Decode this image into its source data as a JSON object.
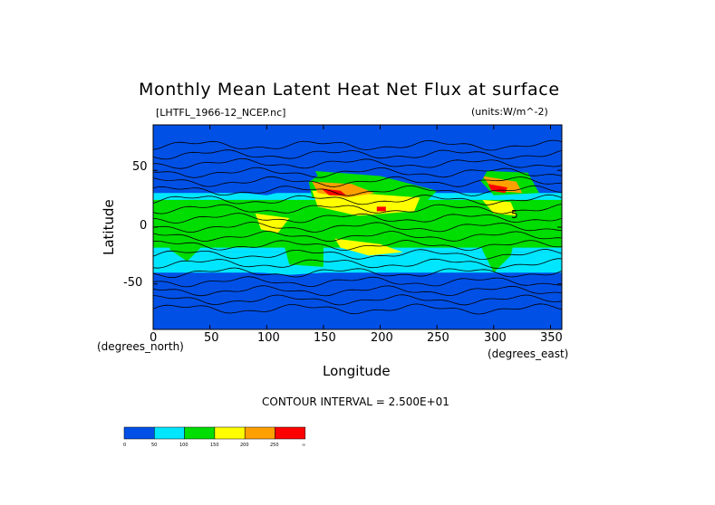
{
  "chart_data": {
    "type": "heatmap",
    "title": "Monthly Mean Latent Heat Net Flux at surface",
    "file_label": "[LHTFL_1966-12_NCEP.nc]",
    "units_label": "(units:W/m^-2)",
    "xlabel": "Longitude",
    "ylabel": "Latitude",
    "x_unit": "(degrees_east)",
    "y_unit": "(degrees_north)",
    "xlim": [
      0,
      360
    ],
    "ylim": [
      -90,
      90
    ],
    "x_ticks": [
      "0",
      "50",
      "100",
      "150",
      "200",
      "250",
      "300",
      "350"
    ],
    "y_ticks": [
      "50",
      "0",
      "-50"
    ],
    "contour_interval": "CONTOUR INTERVAL = 2.500E+01",
    "contour_label": "5",
    "legend": {
      "bins": [
        {
          "color": "#0050e6",
          "label": "0"
        },
        {
          "color": "#00e6ff",
          "label": "50"
        },
        {
          "color": "#00dd00",
          "label": "100"
        },
        {
          "color": "#ffff00",
          "label": "150"
        },
        {
          "color": "#ffa000",
          "label": "200"
        },
        {
          "color": "#ff0000",
          "label": "250"
        }
      ],
      "end_label": "∞"
    }
  }
}
